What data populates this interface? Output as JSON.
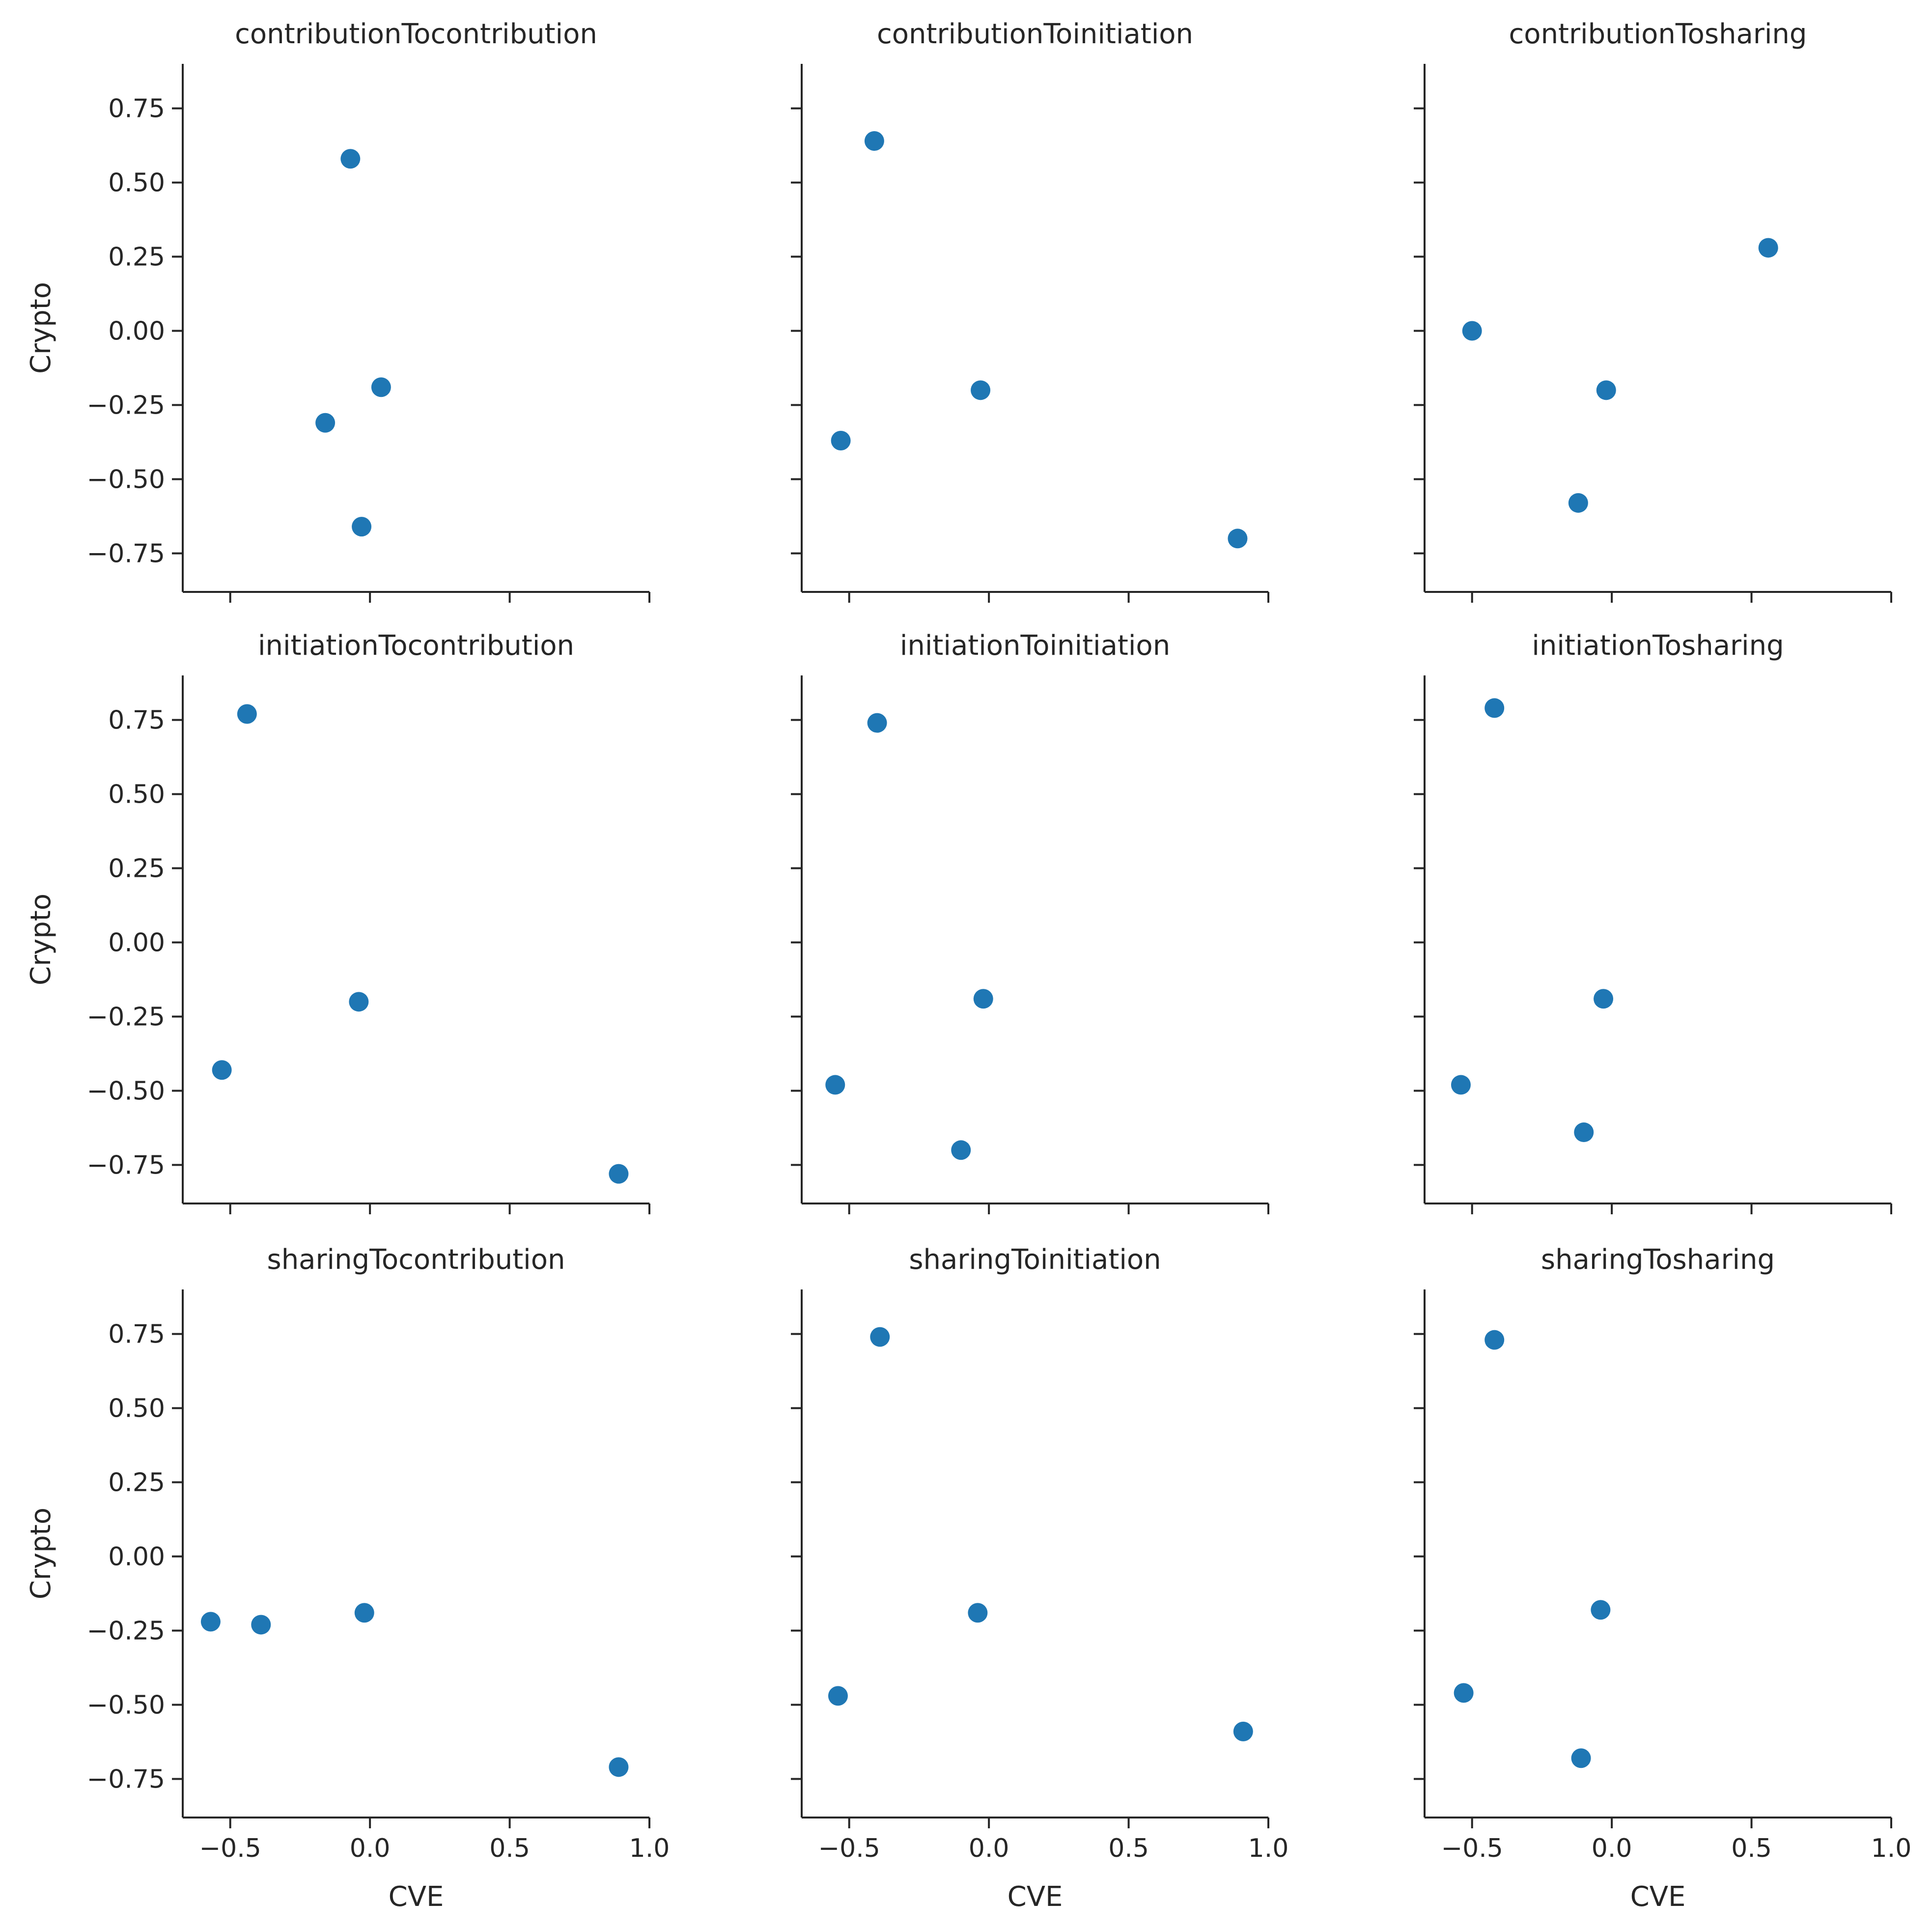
{
  "chart_data": {
    "type": "scatter",
    "layout": "facet-grid-3x3",
    "shared_axes": true,
    "xlabel": "CVE",
    "ylabel": "Crypto",
    "xlim": [
      -0.67,
      1.0
    ],
    "ylim": [
      -0.88,
      0.9
    ],
    "xticks": [
      -0.5,
      0.0,
      0.5,
      1.0
    ],
    "xtick_labels": [
      "−0.5",
      "0.0",
      "0.5",
      "1.0"
    ],
    "yticks": [
      0.75,
      0.5,
      0.25,
      0.0,
      -0.25,
      -0.5,
      -0.75
    ],
    "ytick_labels": [
      "0.75",
      "0.50",
      "0.25",
      "0.00",
      "−0.25",
      "−0.50",
      "−0.75"
    ],
    "marker_color": "#1f77b4",
    "panels": [
      {
        "title": "contributionTocontribution",
        "points": [
          {
            "x": -0.07,
            "y": 0.58
          },
          {
            "x": 0.04,
            "y": -0.19
          },
          {
            "x": -0.16,
            "y": -0.31
          },
          {
            "x": -0.03,
            "y": -0.66
          }
        ]
      },
      {
        "title": "contributionToinitiation",
        "points": [
          {
            "x": -0.41,
            "y": 0.64
          },
          {
            "x": -0.03,
            "y": -0.2
          },
          {
            "x": -0.53,
            "y": -0.37
          },
          {
            "x": 0.89,
            "y": -0.7
          }
        ]
      },
      {
        "title": "contributionTosharing",
        "points": [
          {
            "x": -0.5,
            "y": 0.0
          },
          {
            "x": 0.56,
            "y": 0.28
          },
          {
            "x": -0.02,
            "y": -0.2
          },
          {
            "x": -0.12,
            "y": -0.58
          }
        ]
      },
      {
        "title": "initiationTocontribution",
        "points": [
          {
            "x": -0.44,
            "y": 0.77
          },
          {
            "x": -0.04,
            "y": -0.2
          },
          {
            "x": -0.53,
            "y": -0.43
          },
          {
            "x": 0.89,
            "y": -0.78
          }
        ]
      },
      {
        "title": "initiationToinitiation",
        "points": [
          {
            "x": -0.4,
            "y": 0.74
          },
          {
            "x": -0.02,
            "y": -0.19
          },
          {
            "x": -0.55,
            "y": -0.48
          },
          {
            "x": -0.1,
            "y": -0.7
          }
        ]
      },
      {
        "title": "initiationTosharing",
        "points": [
          {
            "x": -0.42,
            "y": 0.79
          },
          {
            "x": -0.03,
            "y": -0.19
          },
          {
            "x": -0.54,
            "y": -0.48
          },
          {
            "x": -0.1,
            "y": -0.64
          }
        ]
      },
      {
        "title": "sharingTocontribution",
        "points": [
          {
            "x": -0.57,
            "y": -0.22
          },
          {
            "x": -0.39,
            "y": -0.23
          },
          {
            "x": -0.02,
            "y": -0.19
          },
          {
            "x": 0.89,
            "y": -0.71
          }
        ]
      },
      {
        "title": "sharingToinitiation",
        "points": [
          {
            "x": -0.39,
            "y": 0.74
          },
          {
            "x": -0.04,
            "y": -0.19
          },
          {
            "x": -0.54,
            "y": -0.47
          },
          {
            "x": 0.91,
            "y": -0.59
          }
        ]
      },
      {
        "title": "sharingTosharing",
        "points": [
          {
            "x": -0.42,
            "y": 0.73
          },
          {
            "x": -0.04,
            "y": -0.18
          },
          {
            "x": -0.53,
            "y": -0.46
          },
          {
            "x": -0.11,
            "y": -0.68
          }
        ]
      }
    ]
  }
}
